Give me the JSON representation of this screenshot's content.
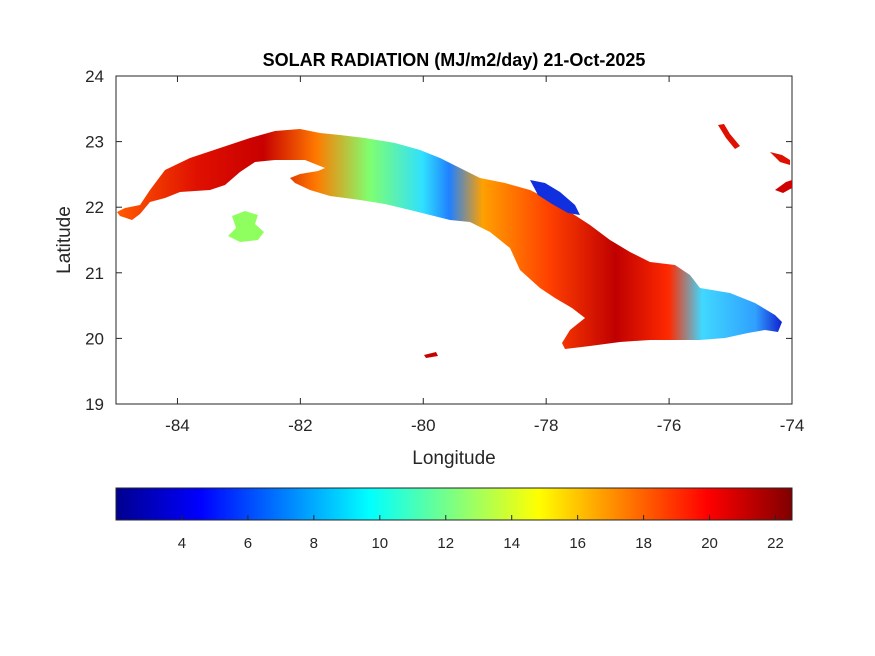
{
  "title": "SOLAR RADIATION (MJ/m2/day) 21-Oct-2025",
  "map": {
    "xlabel": "Longitude",
    "ylabel": "Latitude",
    "xlim": [
      -85,
      -74
    ],
    "ylim": [
      19,
      24
    ],
    "xticks": [
      -84,
      -82,
      -80,
      -78,
      -76,
      -74
    ],
    "yticks": [
      19,
      20,
      21,
      22,
      23,
      24
    ],
    "xtick_labels": [
      "-84",
      "-82",
      "-80",
      "-78",
      "-76",
      "-74"
    ],
    "ytick_labels": [
      "19",
      "20",
      "21",
      "22",
      "23",
      "24"
    ],
    "colormap": "jet",
    "region": "Cuba"
  },
  "colorbar": {
    "orientation": "horizontal",
    "placement": "bottom",
    "range": [
      2,
      22.5
    ],
    "ticks": [
      4,
      6,
      8,
      10,
      12,
      14,
      16,
      18,
      20,
      22
    ],
    "tick_labels": [
      "4",
      "6",
      "8",
      "10",
      "12",
      "14",
      "16",
      "18",
      "20",
      "22"
    ]
  },
  "colors": {
    "low": "#00008f",
    "mid": "#00ffff",
    "high": "#800000",
    "axis": "#262626"
  }
}
